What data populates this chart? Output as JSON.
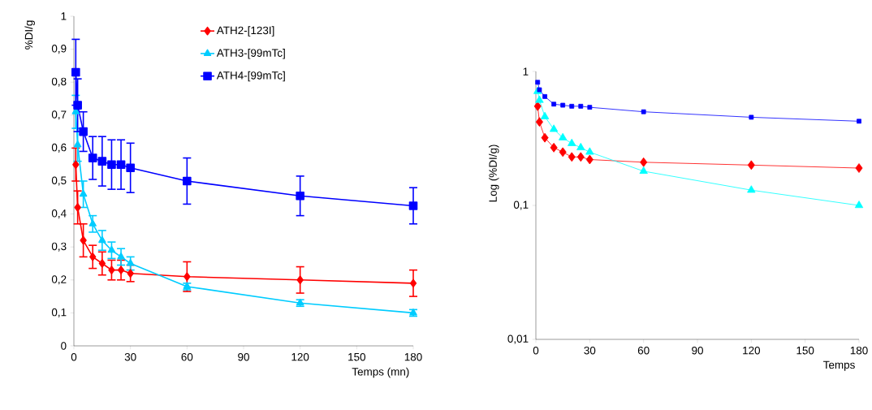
{
  "chart_data": [
    {
      "type": "line",
      "ylabel": "%DI/g",
      "xlabel": "Temps (mn)",
      "x": [
        1,
        2,
        5,
        10,
        15,
        20,
        25,
        30,
        60,
        120,
        180
      ],
      "xlim": [
        0,
        180
      ],
      "xticks": [
        0,
        30,
        60,
        90,
        120,
        150,
        180
      ],
      "ylim": [
        0,
        1
      ],
      "yticks": [
        0,
        {
          "value": 0.1,
          "label": "0,1"
        },
        {
          "value": 0.2,
          "label": "0,2"
        },
        {
          "value": 0.3,
          "label": "0,3"
        },
        {
          "value": 0.4,
          "label": "0,4"
        },
        {
          "value": 0.5,
          "label": "0,5"
        },
        {
          "value": 0.6,
          "label": "0,6"
        },
        {
          "value": 0.7,
          "label": "0,7"
        },
        {
          "value": 0.8,
          "label": "0,8"
        },
        {
          "value": 0.9,
          "label": "0,9"
        },
        1
      ],
      "grid": false,
      "legend": "top",
      "series": [
        {
          "name": "ATH2-[123I]",
          "color": "#ff0000",
          "marker": "diamond",
          "values": [
            0.55,
            0.42,
            0.32,
            0.27,
            0.25,
            0.23,
            0.23,
            0.22,
            0.21,
            0.2,
            0.19
          ],
          "errors": [
            0.05,
            0.05,
            0.05,
            0.035,
            0.035,
            0.03,
            0.03,
            0.025,
            0.045,
            0.04,
            0.04
          ]
        },
        {
          "name": "ATH3-[99mTc]",
          "color": "#00ccff",
          "marker": "triangle",
          "values": [
            0.71,
            0.61,
            0.46,
            0.37,
            0.32,
            0.29,
            0.27,
            0.25,
            0.18,
            0.13,
            0.1
          ],
          "errors": [
            0.05,
            0.05,
            0.04,
            0.025,
            0.03,
            0.025,
            0.025,
            0.02,
            0.01,
            0.01,
            0.01
          ]
        },
        {
          "name": "ATH4-[99mTc]",
          "color": "#0000ff",
          "marker": "square",
          "values": [
            0.83,
            0.73,
            0.65,
            0.57,
            0.56,
            0.55,
            0.55,
            0.54,
            0.5,
            0.455,
            0.425
          ],
          "errors": [
            0.1,
            0.08,
            0.06,
            0.065,
            0.075,
            0.075,
            0.075,
            0.075,
            0.07,
            0.06,
            0.055
          ]
        }
      ]
    },
    {
      "type": "line",
      "ylabel": "Log (%DI/g)",
      "xlabel": "Temps",
      "x": [
        1,
        2,
        5,
        10,
        15,
        20,
        25,
        30,
        60,
        120,
        180
      ],
      "xlim": [
        0,
        180
      ],
      "xticks": [
        0,
        30,
        60,
        90,
        120,
        150,
        180
      ],
      "log": "y",
      "ylim": [
        0.01,
        1
      ],
      "yticks": [
        {
          "value": 0.01,
          "label": "0,01"
        },
        {
          "value": 0.1,
          "label": "0,1"
        },
        1
      ],
      "grid": false,
      "series": [
        {
          "color": "#ff0000",
          "marker": "diamond",
          "values": [
            0.55,
            0.42,
            0.32,
            0.27,
            0.25,
            0.23,
            0.23,
            0.22,
            0.21,
            0.2,
            0.19
          ]
        },
        {
          "color": "#00ffff",
          "marker": "triangle",
          "values": [
            0.71,
            0.61,
            0.46,
            0.37,
            0.32,
            0.29,
            0.27,
            0.25,
            0.18,
            0.13,
            0.1
          ]
        },
        {
          "color": "#0000ff",
          "marker": "square",
          "values": [
            0.83,
            0.73,
            0.65,
            0.57,
            0.56,
            0.55,
            0.55,
            0.54,
            0.5,
            0.455,
            0.425
          ]
        }
      ]
    }
  ]
}
